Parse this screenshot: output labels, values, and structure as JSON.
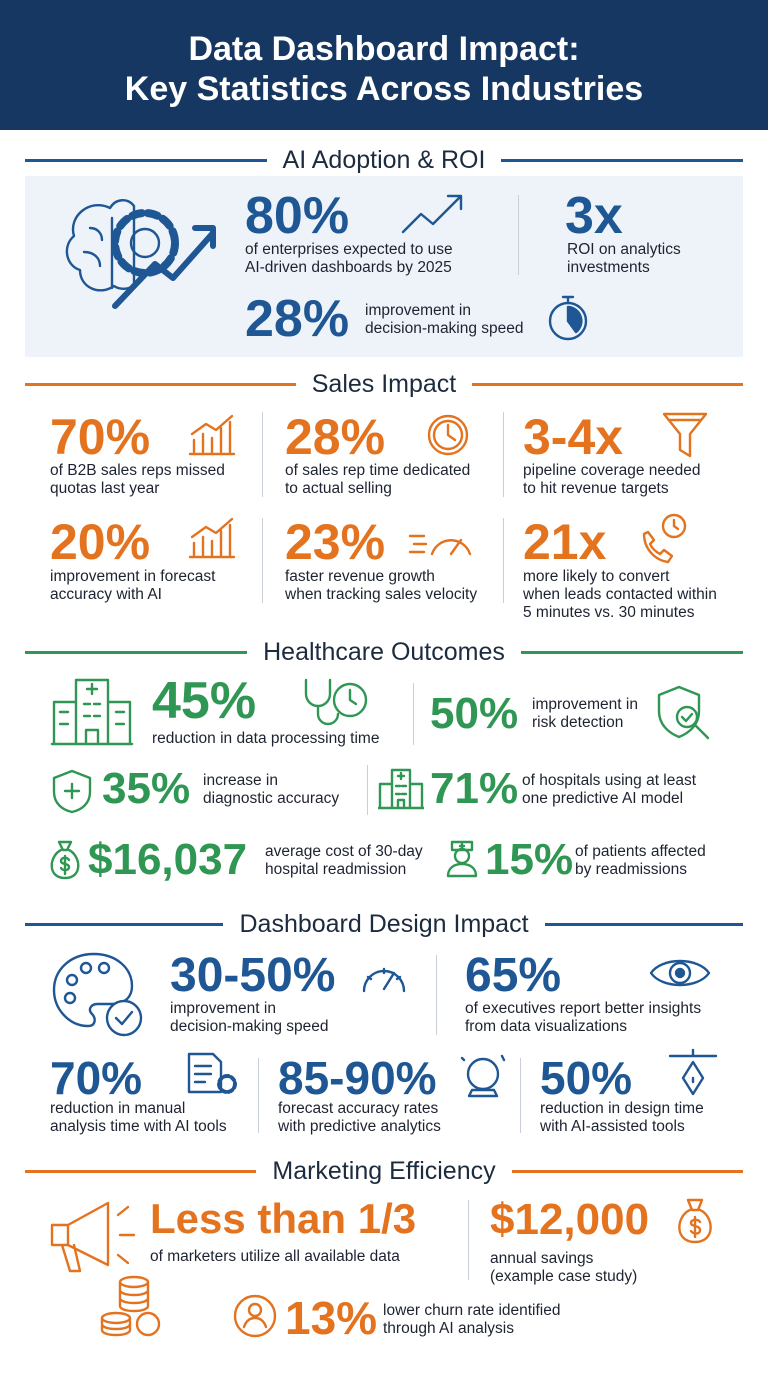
{
  "header": {
    "title_lines": [
      "Data Dashboard Impact:",
      "Key Statistics Across Industries"
    ]
  },
  "sections": [
    {
      "title": "AI Adoption & ROI",
      "stats": [
        {
          "value": "80%",
          "text": "of enterprises expected to use\nAI-driven dashboards by 2025"
        },
        {
          "value": "3x",
          "text": "ROI on analytics\ninvestments"
        },
        {
          "value": "28%",
          "text": "improvement in\ndecision-making speed"
        }
      ]
    },
    {
      "title": "Sales Impact",
      "stats": [
        {
          "value": "70%",
          "text": "of B2B sales reps missed\nquotas last year"
        },
        {
          "value": "28%",
          "text": "of sales rep time dedicated\nto actual selling"
        },
        {
          "value": "3-4x",
          "text": "pipeline coverage needed\nto hit revenue targets"
        },
        {
          "value": "20%",
          "text": "improvement in forecast\naccuracy with AI"
        },
        {
          "value": "23%",
          "text": "faster revenue growth\nwhen tracking sales velocity"
        },
        {
          "value": "21x",
          "text": "more likely to convert\nwhen leads contacted within\n5 minutes vs. 30 minutes"
        }
      ]
    },
    {
      "title": "Healthcare Outcomes",
      "stats": [
        {
          "value": "45%",
          "text": "reduction in data processing time"
        },
        {
          "value": "50%",
          "text": "improvement in\nrisk detection"
        },
        {
          "value": "35%",
          "text": "increase in\ndiagnostic accuracy"
        },
        {
          "value": "71%",
          "text": "of hospitals using at least\none predictive AI model"
        },
        {
          "value": "$16,037",
          "text": "average cost of 30-day\nhospital readmission"
        },
        {
          "value": "15%",
          "text": "of patients affected\nby readmissions"
        }
      ]
    },
    {
      "title": "Dashboard Design Impact",
      "stats": [
        {
          "value": "30-50%",
          "text": "improvement in\ndecision-making speed"
        },
        {
          "value": "65%",
          "text": "of executives report better insights\nfrom data visualizations"
        },
        {
          "value": "70%",
          "text": "reduction in manual\nanalysis time with AI tools"
        },
        {
          "value": "85-90%",
          "text": "forecast accuracy rates\nwith predictive analytics"
        },
        {
          "value": "50%",
          "text": "reduction in design time\nwith AI-assisted tools"
        }
      ]
    },
    {
      "title": "Marketing Efficiency",
      "stats": [
        {
          "value": "Less than 1/3",
          "text": "of marketers utilize all available data"
        },
        {
          "value": "$12,000",
          "text": "annual savings\n(example case study)"
        },
        {
          "value": "13%",
          "text": "lower churn rate identified\nthrough AI analysis"
        }
      ]
    }
  ]
}
